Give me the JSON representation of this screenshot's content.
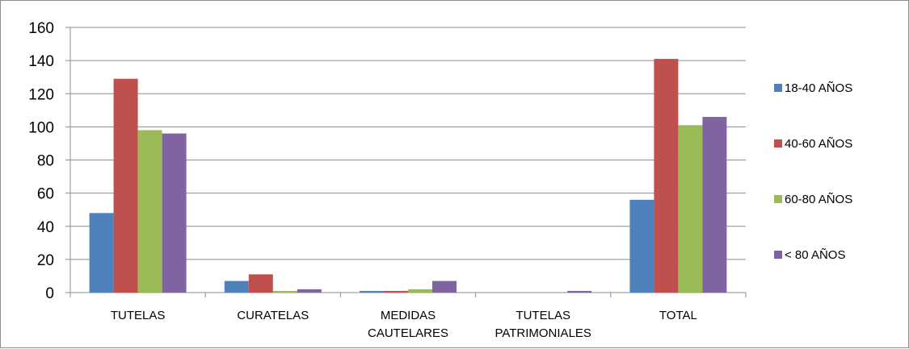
{
  "chart_data": {
    "type": "bar",
    "categories": [
      [
        "TUTELAS"
      ],
      [
        "CURATELAS"
      ],
      [
        "MEDIDAS",
        "CAUTELARES"
      ],
      [
        "TUTELAS",
        "PATRIMONIALES"
      ],
      [
        "TOTAL"
      ]
    ],
    "series": [
      {
        "name": "18-40 AÑOS",
        "color": "#4F81BD",
        "values": [
          48,
          7,
          1,
          0,
          56
        ]
      },
      {
        "name": "40-60 AÑOS",
        "color": "#C0504D",
        "values": [
          129,
          11,
          1,
          0,
          141
        ]
      },
      {
        "name": "60-80 AÑOS",
        "color": "#9BBB59",
        "values": [
          98,
          1,
          2,
          0,
          101
        ]
      },
      {
        "name": "< 80 AÑOS",
        "color": "#8064A2",
        "values": [
          96,
          2,
          7,
          1,
          106
        ]
      }
    ],
    "ylim": [
      0,
      160
    ],
    "yticks": [
      0,
      20,
      40,
      60,
      80,
      100,
      120,
      140,
      160
    ],
    "grid": true,
    "legend_position": "right",
    "title": "",
    "xlabel": "",
    "ylabel": ""
  }
}
